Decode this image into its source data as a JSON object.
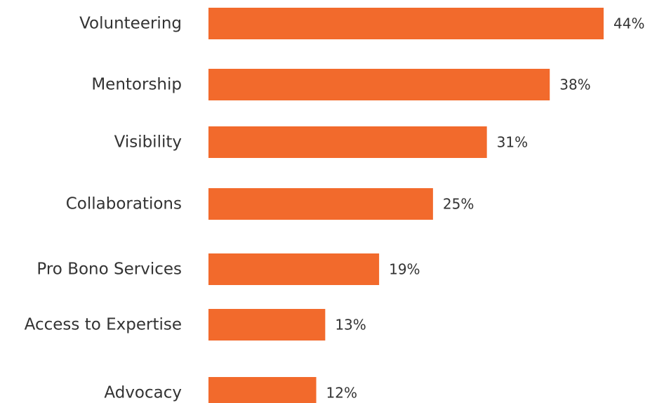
{
  "chart_data": {
    "type": "bar",
    "orientation": "horizontal",
    "categories": [
      "Volunteering",
      "Mentorship",
      "Visibility",
      "Collaborations",
      "Pro Bono Services",
      "Access to Expertise",
      "Advocacy"
    ],
    "values": [
      44,
      38,
      31,
      25,
      19,
      13,
      12
    ],
    "value_labels": [
      "44%",
      "38%",
      "31%",
      "25%",
      "19%",
      "13%",
      "12%"
    ],
    "title": "",
    "xlabel": "",
    "ylabel": "",
    "xlim": [
      0,
      44
    ],
    "grid": false,
    "legend": "none",
    "bar_color": "#F26A2C"
  }
}
